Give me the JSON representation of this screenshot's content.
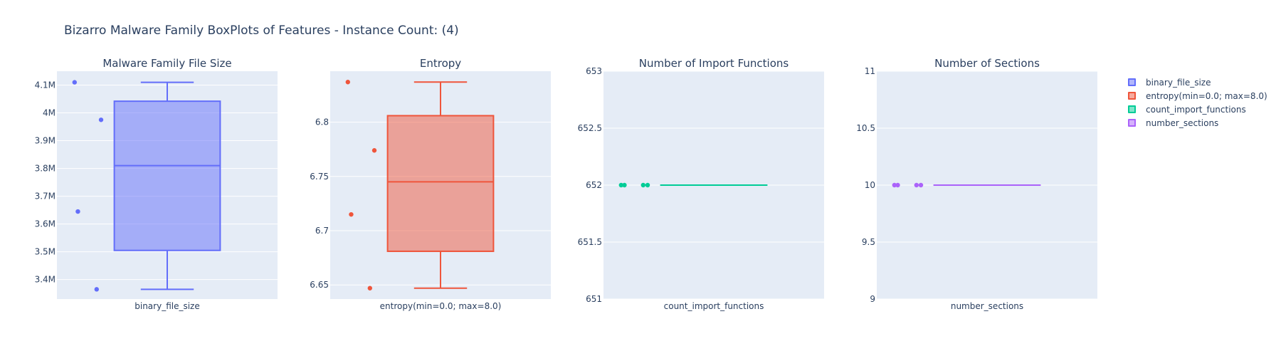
{
  "title": "Bizarro Malware Family BoxPlots of Features - Instance Count: (4)",
  "colors": {
    "binary_file_size": "#636efa",
    "entropy": "#ef553b",
    "count_import_functions": "#00cc96",
    "number_sections": "#ab63fa"
  },
  "legend": [
    {
      "label": "binary_file_size",
      "color": "#636efa"
    },
    {
      "label": "entropy(min=0.0; max=8.0)",
      "color": "#ef553b"
    },
    {
      "label": "count_import_functions",
      "color": "#00cc96"
    },
    {
      "label": "number_sections",
      "color": "#ab63fa"
    }
  ],
  "chart_data": [
    {
      "type": "box",
      "title": "Malware Family File Size",
      "category": "binary_file_size",
      "color": "#636efa",
      "ylim": [
        3330000,
        4150000
      ],
      "yticks": [
        3400000,
        3500000,
        3600000,
        3700000,
        3800000,
        3900000,
        4000000,
        4100000
      ],
      "ytick_labels": [
        "3.4M",
        "3.5M",
        "3.6M",
        "3.7M",
        "3.8M",
        "3.9M",
        "4M",
        "4.1M"
      ],
      "points": [
        4110000,
        3975000,
        3645000,
        3365000
      ],
      "point_jitter": [
        0.08,
        0.2,
        0.095,
        0.18
      ],
      "box": {
        "min": 3365000,
        "q1": 3505000,
        "median": 3810000,
        "q3": 4042000,
        "max": 4110000
      }
    },
    {
      "type": "box",
      "title": "Entropy",
      "category": "entropy(min=0.0; max=8.0)",
      "color": "#ef553b",
      "ylim": [
        6.637,
        6.847
      ],
      "yticks": [
        6.65,
        6.7,
        6.75,
        6.8
      ],
      "ytick_labels": [
        "6.65",
        "6.7",
        "6.75",
        "6.8"
      ],
      "points": [
        6.837,
        6.774,
        6.715,
        6.647
      ],
      "point_jitter": [
        0.08,
        0.2,
        0.095,
        0.18
      ],
      "box": {
        "min": 6.647,
        "q1": 6.681,
        "median": 6.745,
        "q3": 6.806,
        "max": 6.837
      }
    },
    {
      "type": "box",
      "title": "Number of Import Functions",
      "category": "count_import_functions",
      "color": "#00cc96",
      "ylim": [
        651,
        653
      ],
      "yticks": [
        651,
        651.5,
        652,
        652.5,
        653
      ],
      "ytick_labels": [
        "651",
        "651.5",
        "652",
        "652.5",
        "653"
      ],
      "points": [
        652,
        652,
        652,
        652
      ],
      "point_jitter": [
        0.08,
        0.095,
        0.18,
        0.2
      ],
      "box": {
        "min": 652,
        "q1": 652,
        "median": 652,
        "q3": 652,
        "max": 652
      }
    },
    {
      "type": "box",
      "title": "Number of Sections",
      "category": "number_sections",
      "color": "#ab63fa",
      "ylim": [
        9,
        11
      ],
      "yticks": [
        9,
        9.5,
        10,
        10.5,
        11
      ],
      "ytick_labels": [
        "9",
        "9.5",
        "10",
        "10.5",
        "11"
      ],
      "points": [
        10,
        10,
        10,
        10
      ],
      "point_jitter": [
        0.08,
        0.095,
        0.18,
        0.2
      ],
      "box": {
        "min": 10,
        "q1": 10,
        "median": 10,
        "q3": 10,
        "max": 10
      }
    }
  ]
}
